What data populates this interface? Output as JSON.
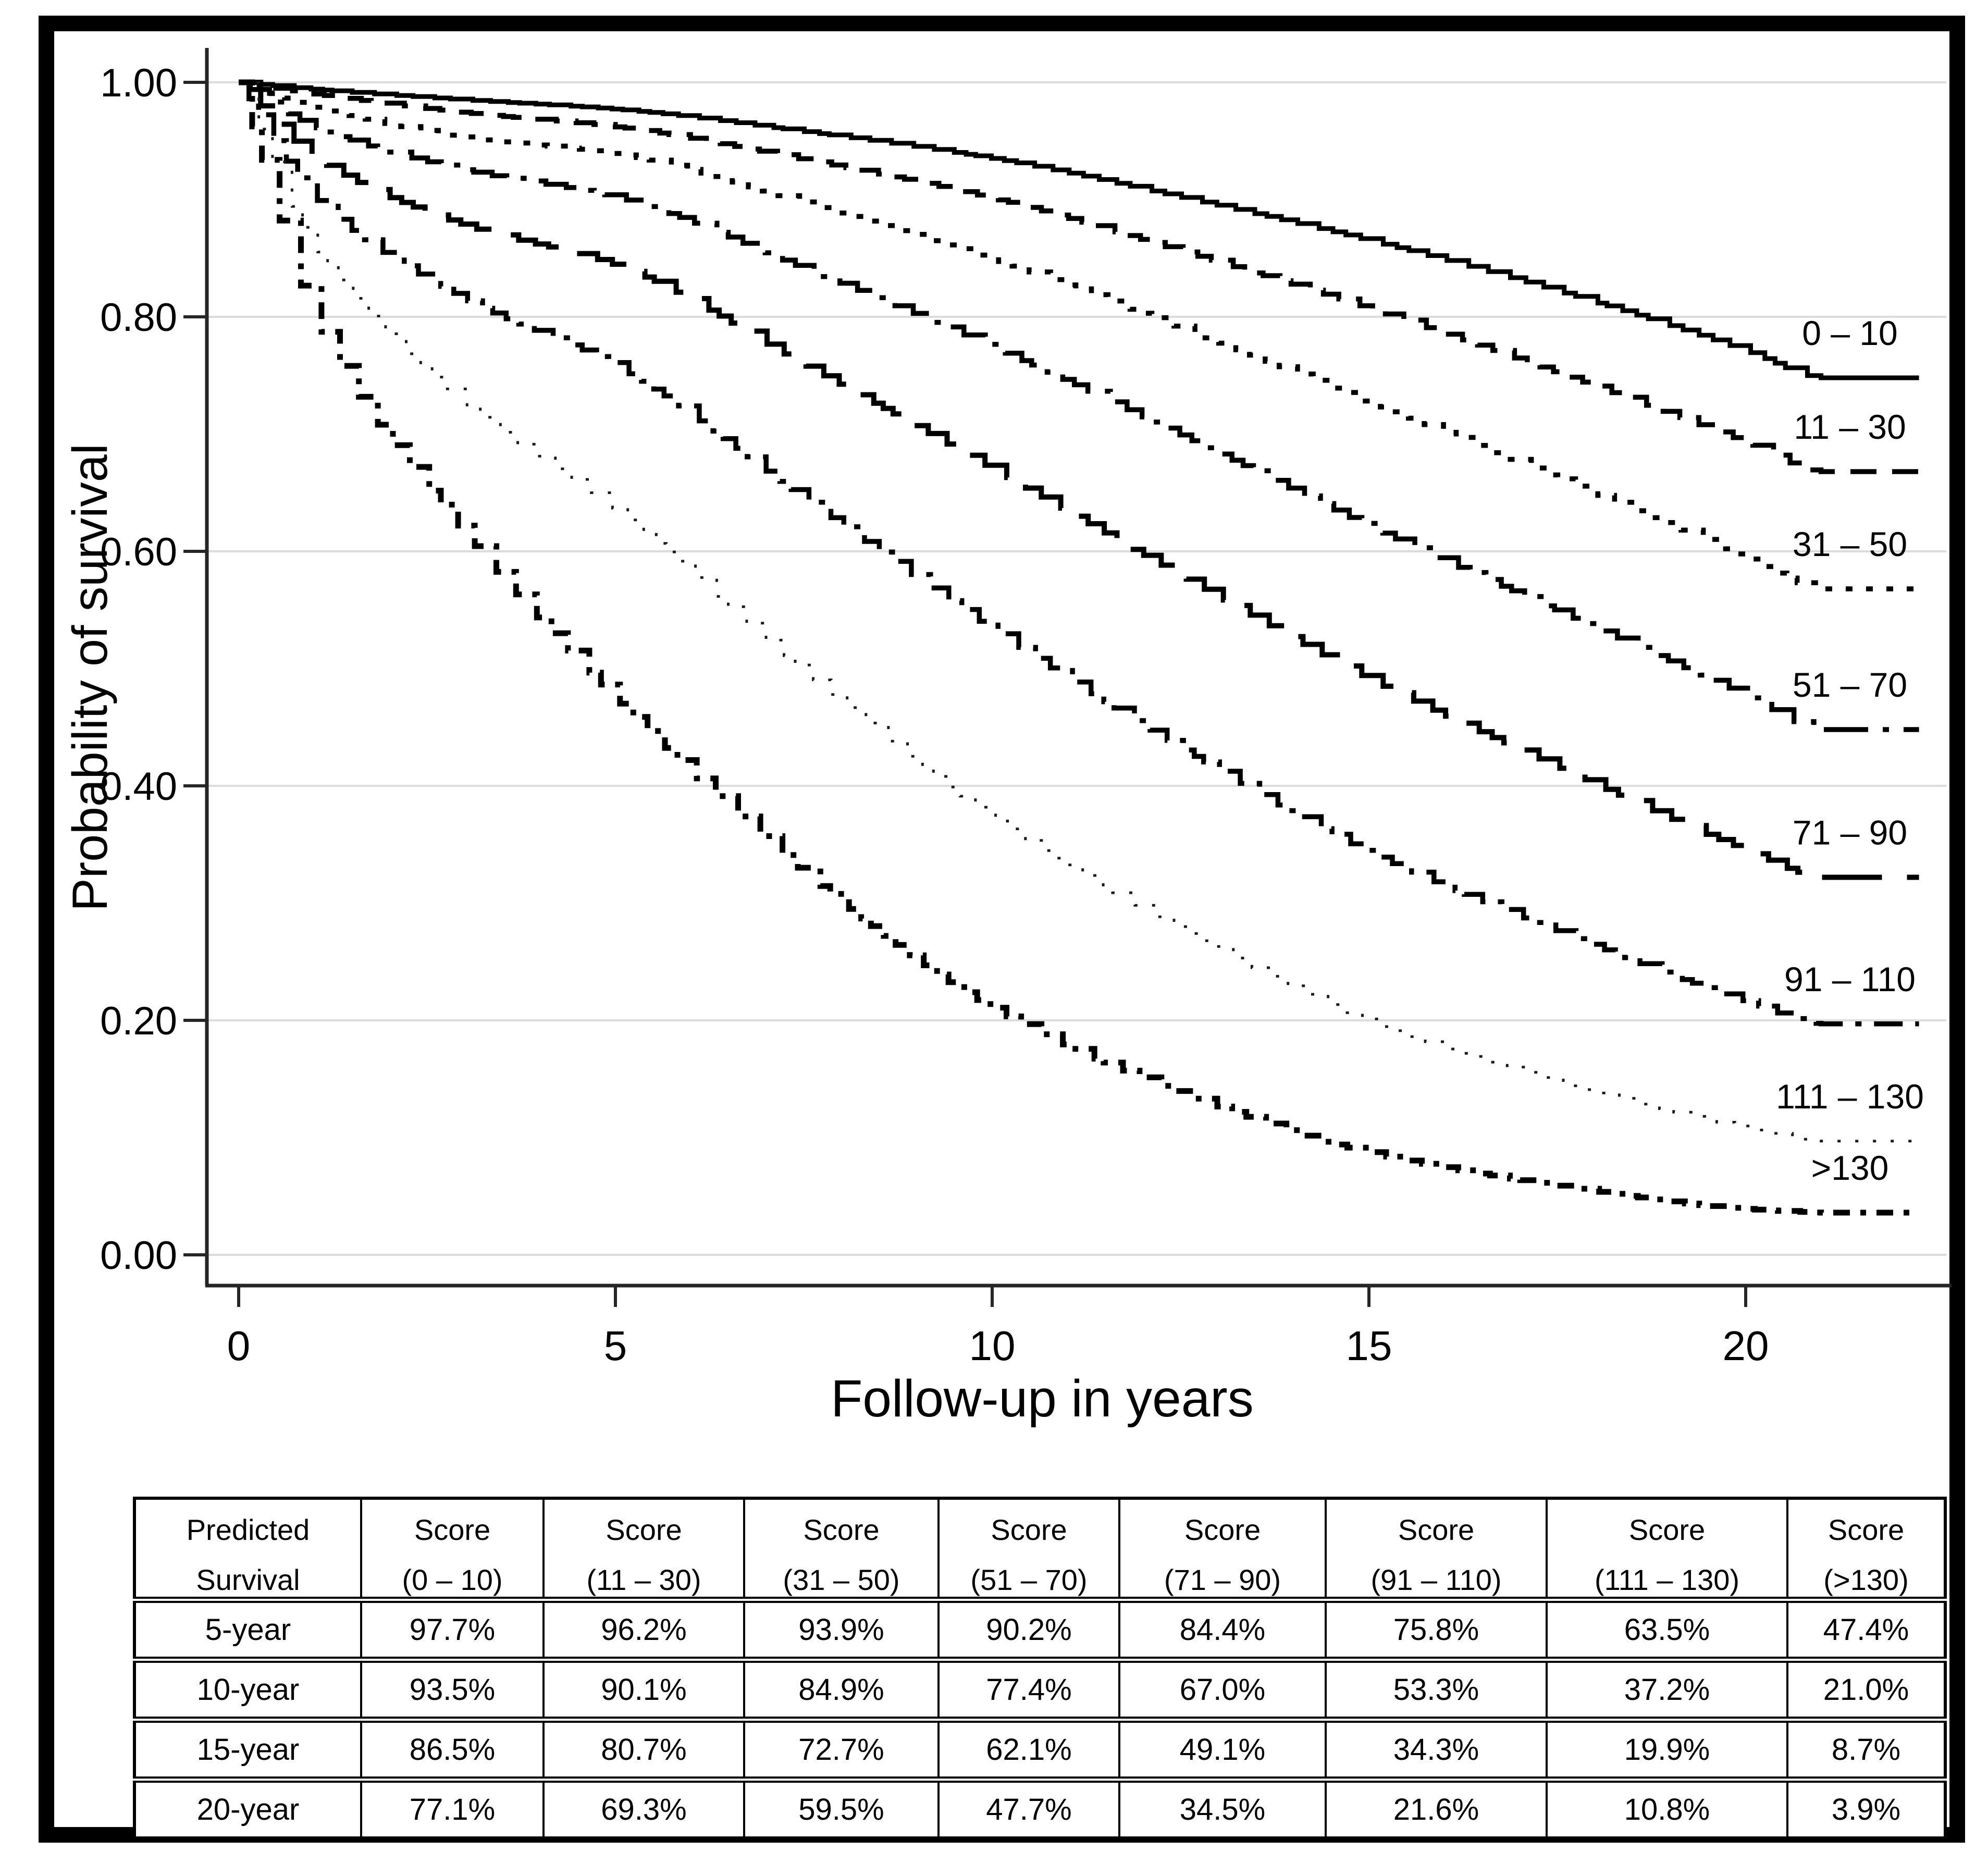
{
  "figure": {
    "y_axis": {
      "title": "Probability of survival",
      "ticks": [
        "1.00",
        "0.80",
        "0.60",
        "0.40",
        "0.20",
        "0.00"
      ],
      "tick_values": [
        1.0,
        0.8,
        0.6,
        0.4,
        0.2,
        0.0
      ]
    },
    "x_axis": {
      "title": "Follow-up in years",
      "ticks": [
        "0",
        "5",
        "10",
        "15",
        "20"
      ],
      "tick_values": [
        0,
        5,
        10,
        15,
        20
      ]
    }
  },
  "chart_data": {
    "type": "line",
    "subtype": "kaplan-meier-step",
    "title": "",
    "xlabel": "Follow-up in years",
    "ylabel": "Probability of survival",
    "xlim": [
      0,
      22.5
    ],
    "ylim": [
      0.0,
      1.0
    ],
    "x_ticks": [
      0,
      5,
      10,
      15,
      20
    ],
    "y_ticks": [
      0.0,
      0.2,
      0.4,
      0.6,
      0.8,
      1.0
    ],
    "grid": "horizontal-light",
    "legend_position": "right-inline-labels",
    "series": [
      {
        "label": "0 – 10",
        "line_style": "solid",
        "points": [
          [
            0,
            1.0
          ],
          [
            1,
            0.994
          ],
          [
            3,
            0.985
          ],
          [
            5,
            0.977
          ],
          [
            7.5,
            0.958
          ],
          [
            10,
            0.935
          ],
          [
            12.5,
            0.902
          ],
          [
            15,
            0.865
          ],
          [
            17.5,
            0.822
          ],
          [
            20,
            0.771
          ],
          [
            21,
            0.748
          ],
          [
            22.3,
            0.745
          ]
        ]
      },
      {
        "label": "11 – 30",
        "line_style": "dashed",
        "points": [
          [
            0,
            1.0
          ],
          [
            1,
            0.99
          ],
          [
            3,
            0.974
          ],
          [
            5,
            0.962
          ],
          [
            7.5,
            0.934
          ],
          [
            10,
            0.901
          ],
          [
            12.5,
            0.856
          ],
          [
            15,
            0.807
          ],
          [
            17.5,
            0.752
          ],
          [
            20,
            0.693
          ],
          [
            21,
            0.668
          ],
          [
            22.3,
            0.665
          ]
        ]
      },
      {
        "label": "31 – 50",
        "line_style": "dotted",
        "points": [
          [
            0,
            1.0
          ],
          [
            1,
            0.979
          ],
          [
            3,
            0.953
          ],
          [
            5,
            0.939
          ],
          [
            7.5,
            0.897
          ],
          [
            10,
            0.849
          ],
          [
            12.5,
            0.79
          ],
          [
            15,
            0.727
          ],
          [
            17.5,
            0.662
          ],
          [
            20,
            0.595
          ],
          [
            21,
            0.568
          ],
          [
            22.3,
            0.565
          ]
        ]
      },
      {
        "label": "51 – 70",
        "line_style": "dash-dot",
        "points": [
          [
            0,
            1.0
          ],
          [
            1,
            0.962
          ],
          [
            3,
            0.925
          ],
          [
            5,
            0.902
          ],
          [
            7.5,
            0.841
          ],
          [
            10,
            0.774
          ],
          [
            12.5,
            0.699
          ],
          [
            15,
            0.621
          ],
          [
            17.5,
            0.549
          ],
          [
            20,
            0.477
          ],
          [
            21,
            0.448
          ],
          [
            22.3,
            0.445
          ]
        ]
      },
      {
        "label": "71 – 90",
        "line_style": "long-dash",
        "points": [
          [
            0,
            1.0
          ],
          [
            1,
            0.936
          ],
          [
            3,
            0.878
          ],
          [
            5,
            0.844
          ],
          [
            7.5,
            0.759
          ],
          [
            10,
            0.67
          ],
          [
            12.5,
            0.579
          ],
          [
            15,
            0.491
          ],
          [
            17.5,
            0.416
          ],
          [
            20,
            0.345
          ],
          [
            21,
            0.322
          ],
          [
            22.3,
            0.318
          ]
        ]
      },
      {
        "label": "91 – 110",
        "line_style": "dash-dot-med",
        "points": [
          [
            0,
            1.0
          ],
          [
            1,
            0.902
          ],
          [
            3,
            0.815
          ],
          [
            5,
            0.758
          ],
          [
            7.5,
            0.645
          ],
          [
            10,
            0.533
          ],
          [
            12.5,
            0.432
          ],
          [
            15,
            0.343
          ],
          [
            17.5,
            0.276
          ],
          [
            20,
            0.216
          ],
          [
            21,
            0.197
          ],
          [
            22.3,
            0.193
          ]
        ]
      },
      {
        "label": "111 – 130",
        "line_style": "fine-dot",
        "points": [
          [
            0,
            1.0
          ],
          [
            1,
            0.86
          ],
          [
            3,
            0.725
          ],
          [
            5,
            0.635
          ],
          [
            7.5,
            0.497
          ],
          [
            10,
            0.372
          ],
          [
            12.5,
            0.277
          ],
          [
            15,
            0.199
          ],
          [
            17.5,
            0.148
          ],
          [
            20,
            0.108
          ],
          [
            21,
            0.097
          ],
          [
            22.3,
            0.094
          ]
        ]
      },
      {
        "label": ">130",
        "line_style": "dash-dot-bold",
        "points": [
          [
            0,
            1.0
          ],
          [
            1,
            0.8
          ],
          [
            3,
            0.615
          ],
          [
            5,
            0.474
          ],
          [
            7.5,
            0.326
          ],
          [
            10,
            0.21
          ],
          [
            12.5,
            0.138
          ],
          [
            15,
            0.087
          ],
          [
            17.5,
            0.059
          ],
          [
            20,
            0.039
          ],
          [
            21,
            0.036
          ],
          [
            22.3,
            0.034
          ]
        ]
      }
    ]
  },
  "table": {
    "columns": [
      {
        "line1": "Predicted",
        "line2": "Survival"
      },
      {
        "line1": "Score",
        "line2": "(0 – 10)"
      },
      {
        "line1": "Score",
        "line2": "(11 – 30)"
      },
      {
        "line1": "Score",
        "line2": "(31 – 50)"
      },
      {
        "line1": "Score",
        "line2": "(51 – 70)"
      },
      {
        "line1": "Score",
        "line2": "(71 – 90)"
      },
      {
        "line1": "Score",
        "line2": "(91 – 110)"
      },
      {
        "line1": "Score",
        "line2": "(111 – 130)"
      },
      {
        "line1": "Score",
        "line2": "(>130)"
      }
    ],
    "rows": [
      {
        "label": "5-year",
        "values": [
          "97.7%",
          "96.2%",
          "93.9%",
          "90.2%",
          "84.4%",
          "75.8%",
          "63.5%",
          "47.4%"
        ]
      },
      {
        "label": "10-year",
        "values": [
          "93.5%",
          "90.1%",
          "84.9%",
          "77.4%",
          "67.0%",
          "53.3%",
          "37.2%",
          "21.0%"
        ]
      },
      {
        "label": "15-year",
        "values": [
          "86.5%",
          "80.7%",
          "72.7%",
          "62.1%",
          "49.1%",
          "34.3%",
          "19.9%",
          "8.7%"
        ]
      },
      {
        "label": "20-year",
        "values": [
          "77.1%",
          "69.3%",
          "59.5%",
          "47.7%",
          "34.5%",
          "21.6%",
          "10.8%",
          "3.9%"
        ]
      }
    ]
  }
}
